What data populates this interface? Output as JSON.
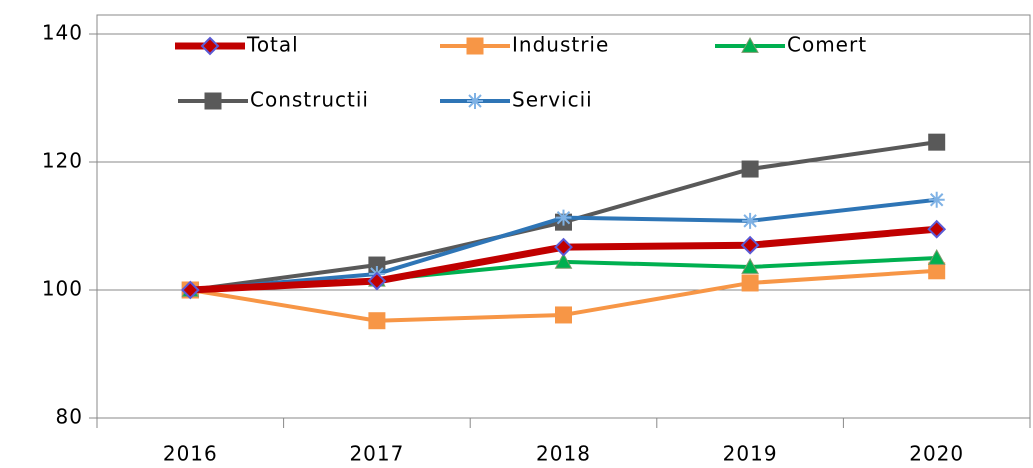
{
  "chart_data": {
    "type": "line",
    "categories": [
      "2016",
      "2017",
      "2018",
      "2019",
      "2020"
    ],
    "series": [
      {
        "name": "Total",
        "color": "#c00000",
        "marker": "diamond",
        "values": [
          100,
          101.4,
          106.7,
          107.0,
          109.5
        ]
      },
      {
        "name": "Industrie",
        "color": "#f79646",
        "marker": "square",
        "values": [
          100,
          95.2,
          96.1,
          101.1,
          103.0
        ]
      },
      {
        "name": "Comert",
        "color": "#00b050",
        "marker": "triangle",
        "values": [
          100,
          101.6,
          104.4,
          103.6,
          105.0
        ]
      },
      {
        "name": "Constructii",
        "color": "#595959",
        "marker": "square",
        "values": [
          100,
          103.9,
          110.6,
          118.9,
          123.1
        ]
      },
      {
        "name": "Servicii",
        "color": "#2e75b6",
        "marker": "star",
        "values": [
          100,
          102.5,
          111.3,
          110.8,
          114.1
        ]
      }
    ],
    "ylim": [
      80,
      140
    ],
    "yticks": [
      80,
      100,
      120,
      140
    ],
    "grid": true,
    "legend": "top"
  }
}
